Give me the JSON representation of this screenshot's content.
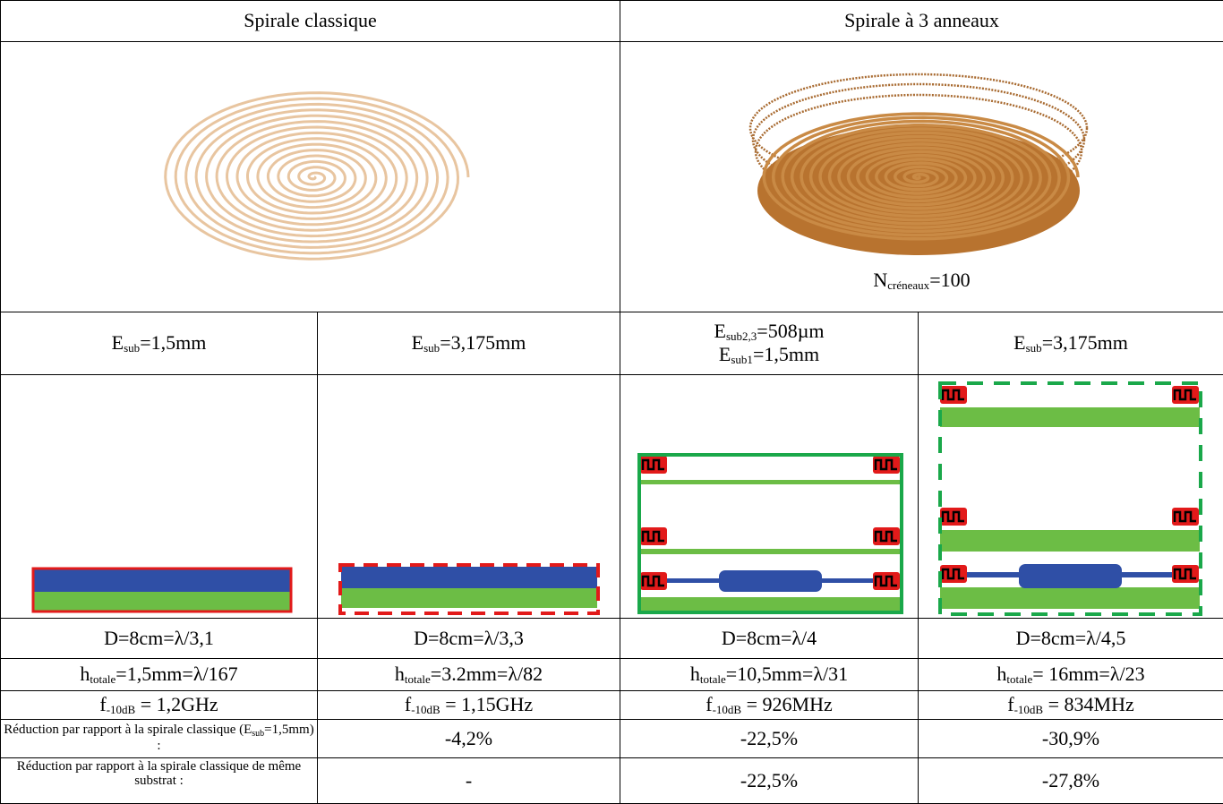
{
  "header": {
    "left": "Spirale classique",
    "right": "Spirale à 3 anneaux"
  },
  "image_caption": {
    "base": "N",
    "sub": "créneaux",
    "rest": "=100"
  },
  "substrate": [
    [
      {
        "base": "E",
        "sub": "sub",
        "rest": "=1,5mm"
      }
    ],
    [
      {
        "base": "E",
        "sub": "sub",
        "rest": "=3,175mm"
      }
    ],
    [
      {
        "base": "E",
        "sub": "sub2,3",
        "rest": "=508µm"
      },
      {
        "base": "E",
        "sub": "sub1",
        "rest": "=1,5mm"
      }
    ],
    [
      {
        "base": "E",
        "sub": "sub",
        "rest": "=3,175mm"
      }
    ]
  ],
  "diameter": [
    "D=8cm=λ/3,1",
    "D=8cm=λ/3,3",
    "D=8cm=λ/4",
    "D=8cm=λ/4,5"
  ],
  "height": [
    {
      "base": "h",
      "sub": "totale",
      "rest": "=1,5mm=λ/167"
    },
    {
      "base": "h",
      "sub": "totale",
      "rest": "=3.2mm=λ/82"
    },
    {
      "base": "h",
      "sub": "totale",
      "rest": "=10,5mm=λ/31"
    },
    {
      "base": "h",
      "sub": "totale",
      "rest": "= 16mm=λ/23"
    }
  ],
  "frequency": [
    {
      "base": "f",
      "sub": "-10dB",
      "rest": " = 1,2GHz"
    },
    {
      "base": "f",
      "sub": "-10dB",
      "rest": " = 1,15GHz"
    },
    {
      "base": "f",
      "sub": "-10dB",
      "rest": " = 926MHz"
    },
    {
      "base": "f",
      "sub": "-10dB",
      "rest": " = 834MHz"
    }
  ],
  "reductions": [
    {
      "label": {
        "base": "Réduction par rapport à la spirale classique (E",
        "sub": "sub",
        "rest": "=1,5mm) :"
      },
      "values": [
        "-4,2%",
        "-22,5%",
        "-30,9%"
      ]
    },
    {
      "label": "Réduction par rapport à la spirale classique de même substrat :",
      "values": [
        "-",
        "-22,5%",
        "-27,8%"
      ]
    }
  ]
}
